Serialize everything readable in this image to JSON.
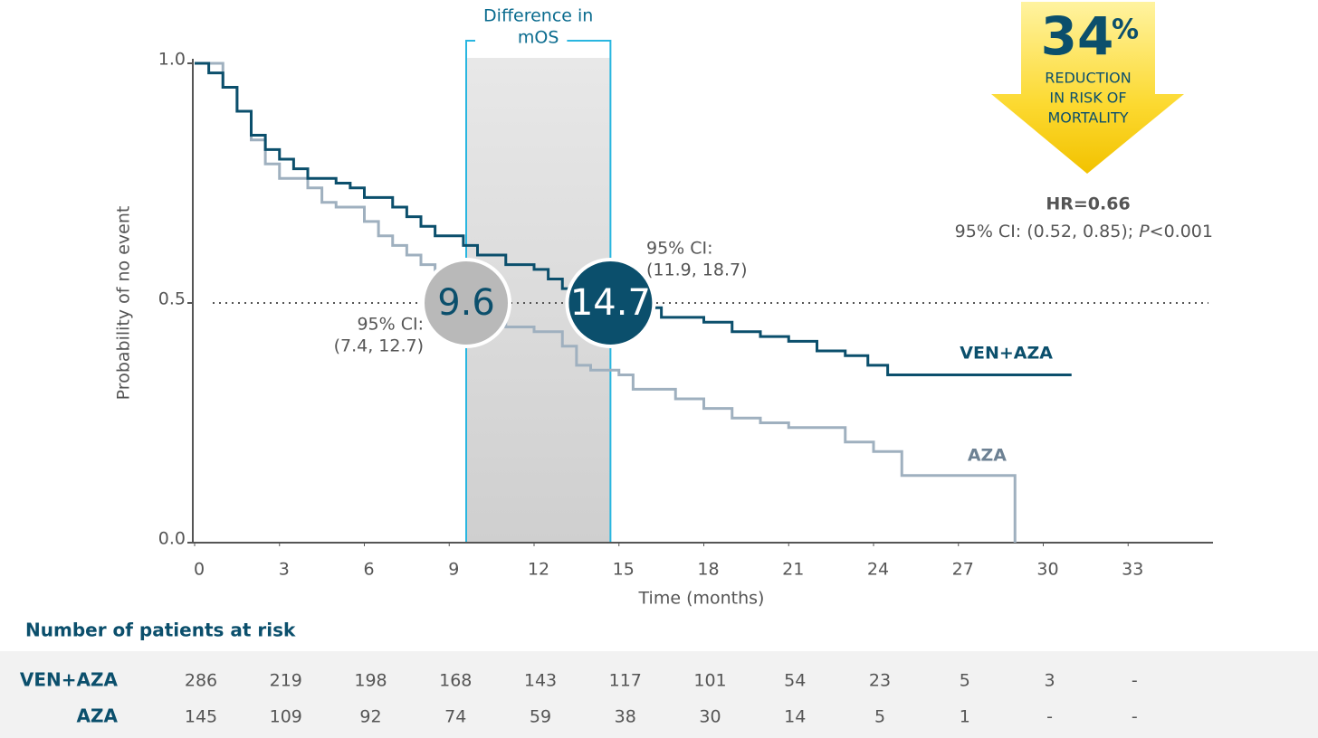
{
  "chart_data": {
    "type": "km",
    "x_label": "Time (months)",
    "y_label": "Probability of no event",
    "xlim": [
      0,
      36
    ],
    "ylim": [
      0,
      1
    ],
    "xticks": [
      0,
      3,
      6,
      9,
      12,
      15,
      18,
      21,
      24,
      27,
      30,
      33
    ],
    "yticks": [
      {
        "value": 0,
        "label": "0.0"
      },
      {
        "value": 0.5,
        "label": "0.5"
      },
      {
        "value": 1,
        "label": "1.0"
      }
    ],
    "reference_line": 0.5,
    "difference_label": [
      "Difference in",
      "mOS"
    ],
    "series": [
      {
        "name": "VEN+AZA",
        "color": "#0b4f6c",
        "x": [
          0,
          0.5,
          1,
          1.5,
          2,
          2.5,
          3,
          3.5,
          4,
          5,
          5.5,
          6,
          7,
          7.5,
          8,
          8.5,
          9.5,
          10,
          11,
          12,
          12.5,
          13,
          14.7,
          15.5,
          16.5,
          18,
          19,
          20,
          21,
          22,
          23,
          23.8,
          24.5,
          31
        ],
        "values": [
          1.0,
          0.98,
          0.95,
          0.9,
          0.85,
          0.82,
          0.8,
          0.78,
          0.76,
          0.75,
          0.74,
          0.72,
          0.7,
          0.68,
          0.66,
          0.64,
          0.62,
          0.6,
          0.58,
          0.57,
          0.55,
          0.53,
          0.5,
          0.49,
          0.47,
          0.46,
          0.44,
          0.43,
          0.42,
          0.4,
          0.39,
          0.37,
          0.35,
          0.35
        ],
        "median": 14.7,
        "median_ci_label": "95% CI:",
        "median_ci": "(11.9, 18.7)"
      },
      {
        "name": "AZA",
        "color": "#9fb0bf",
        "x": [
          0,
          1,
          1.5,
          2,
          2.5,
          3,
          4,
          4.5,
          5,
          6,
          6.5,
          7,
          7.5,
          8,
          8.5,
          9.6,
          11,
          12,
          13,
          13.5,
          14,
          15,
          15.5,
          17,
          18,
          19,
          20,
          21,
          23,
          24,
          25,
          29
        ],
        "values": [
          1.0,
          0.95,
          0.9,
          0.84,
          0.79,
          0.76,
          0.74,
          0.71,
          0.7,
          0.67,
          0.64,
          0.62,
          0.6,
          0.58,
          0.56,
          0.5,
          0.45,
          0.44,
          0.41,
          0.37,
          0.36,
          0.35,
          0.32,
          0.3,
          0.28,
          0.26,
          0.25,
          0.24,
          0.21,
          0.19,
          0.14,
          0.0
        ],
        "median": 9.6,
        "median_ci_label": "95% CI:",
        "median_ci": "(7.4, 12.7)"
      }
    ],
    "callout": {
      "value": 34,
      "unit": "%",
      "lines": [
        "REDUCTION",
        "IN RISK OF",
        "MORTALITY"
      ]
    },
    "hr": "HR=0.66",
    "hr_ci": "95% CI: (0.52, 0.85); ",
    "p_label": "P",
    "p_value": "<0.001",
    "risk_table": {
      "title": "Number of patients at risk",
      "rows": [
        {
          "name": "VEN+AZA",
          "values": [
            286,
            219,
            198,
            168,
            143,
            117,
            101,
            54,
            23,
            5,
            3,
            "-"
          ]
        },
        {
          "name": "AZA",
          "values": [
            145,
            109,
            92,
            74,
            59,
            38,
            30,
            14,
            5,
            1,
            "-",
            "-"
          ]
        }
      ]
    }
  }
}
